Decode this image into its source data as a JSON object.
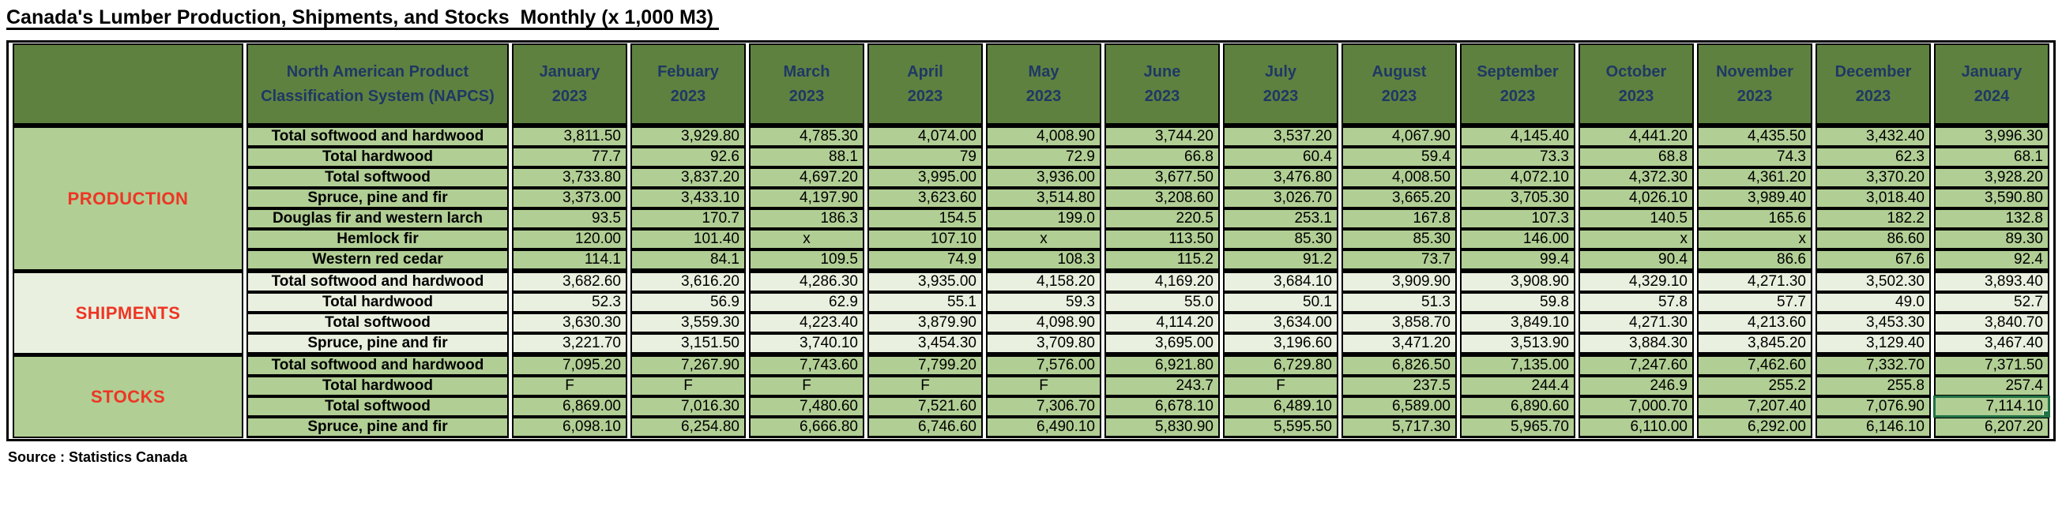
{
  "title": "Canada's Lumber Production, Shipments, and Stocks  Monthly (x 1,000 M3) ",
  "source_note": "Source : Statistics Canada",
  "colors": {
    "header_green": "#5e8140",
    "row_green": "#b1ce94",
    "row_pale_green": "#e9f0df",
    "header_text_navy": "#1f3864",
    "section_label_red": "#ee3524",
    "selection_green": "#217346",
    "border_black": "#000000"
  },
  "table": {
    "napcs_header": "North American Product Classification System (NAPCS)",
    "columns": [
      {
        "month": "January",
        "year": "2023"
      },
      {
        "month": "Febuary",
        "year": "2023"
      },
      {
        "month": "March",
        "year": "2023"
      },
      {
        "month": "April",
        "year": "2023"
      },
      {
        "month": "May",
        "year": "2023"
      },
      {
        "month": "June",
        "year": "2023"
      },
      {
        "month": "July",
        "year": "2023"
      },
      {
        "month": "August",
        "year": "2023"
      },
      {
        "month": "September",
        "year": "2023"
      },
      {
        "month": "October",
        "year": "2023"
      },
      {
        "month": "November",
        "year": "2023"
      },
      {
        "month": "December",
        "year": "2023"
      },
      {
        "month": "January",
        "year": "2024"
      }
    ],
    "sections": [
      {
        "name": "PRODUCTION",
        "tone": "green",
        "rows": [
          {
            "label": "Total softwood and hardwood",
            "values": [
              "3,811.50",
              "3,929.80",
              "4,785.30",
              "4,074.00",
              "4,008.90",
              "3,744.20",
              "3,537.20",
              "4,067.90",
              "4,145.40",
              "4,441.20",
              "4,435.50",
              "3,432.40",
              "3,996.30"
            ]
          },
          {
            "label": "Total hardwood",
            "values": [
              "77.7",
              "92.6",
              "88.1",
              "79",
              "72.9",
              "66.8",
              "60.4",
              "59.4",
              "73.3",
              "68.8",
              "74.3",
              "62.3",
              "68.1"
            ]
          },
          {
            "label": "Total softwood",
            "values": [
              "3,733.80",
              "3,837.20",
              "4,697.20",
              "3,995.00",
              "3,936.00",
              "3,677.50",
              "3,476.80",
              "4,008.50",
              "4,072.10",
              "4,372.30",
              "4,361.20",
              "3,370.20",
              "3,928.20"
            ]
          },
          {
            "label": "Spruce, pine and fir",
            "values": [
              "3,373.00",
              "3,433.10",
              "4,197.90",
              "3,623.60",
              "3,514.80",
              "3,208.60",
              "3,026.70",
              "3,665.20",
              "3,705.30",
              "4,026.10",
              "3,989.40",
              "3,018.40",
              "3,590.80"
            ]
          },
          {
            "label": "Douglas fir and western larch",
            "values": [
              "93.5",
              "170.7",
              "186.3",
              "154.5",
              "199.0",
              "220.5",
              "253.1",
              "167.8",
              "107.3",
              "140.5",
              "165.6",
              "182.2",
              "132.8"
            ]
          },
          {
            "label": "Hemlock fir",
            "values": [
              "120.00",
              "101.40",
              "x",
              "107.10",
              "x",
              "113.50",
              "85.30",
              "85.30",
              "146.00",
              "x",
              "x",
              "86.60",
              "89.30"
            ],
            "right_cols": [
              9,
              10
            ]
          },
          {
            "label": "Western red cedar",
            "values": [
              "114.1",
              "84.1",
              "109.5",
              "74.9",
              "108.3",
              "115.2",
              "91.2",
              "73.7",
              "99.4",
              "90.4",
              "86.6",
              "67.6",
              "92.4"
            ]
          }
        ]
      },
      {
        "name": "SHIPMENTS",
        "tone": "pale",
        "rows": [
          {
            "label": "Total softwood and hardwood",
            "values": [
              "3,682.60",
              "3,616.20",
              "4,286.30",
              "3,935.00",
              "4,158.20",
              "4,169.20",
              "3,684.10",
              "3,909.90",
              "3,908.90",
              "4,329.10",
              "4,271.30",
              "3,502.30",
              "3,893.40"
            ]
          },
          {
            "label": "Total hardwood",
            "values": [
              "52.3",
              "56.9",
              "62.9",
              "55.1",
              "59.3",
              "55.0",
              "50.1",
              "51.3",
              "59.8",
              "57.8",
              "57.7",
              "49.0",
              "52.7"
            ]
          },
          {
            "label": "Total softwood",
            "values": [
              "3,630.30",
              "3,559.30",
              "4,223.40",
              "3,879.90",
              "4,098.90",
              "4,114.20",
              "3,634.00",
              "3,858.70",
              "3,849.10",
              "4,271.30",
              "4,213.60",
              "3,453.30",
              "3,840.70"
            ]
          },
          {
            "label": "Spruce, pine and fir",
            "values": [
              "3,221.70",
              "3,151.50",
              "3,740.10",
              "3,454.30",
              "3,709.80",
              "3,695.00",
              "3,196.60",
              "3,471.20",
              "3,513.90",
              "3,884.30",
              "3,845.20",
              "3,129.40",
              "3,467.40"
            ]
          }
        ]
      },
      {
        "name": "STOCKS",
        "tone": "green",
        "rows": [
          {
            "label": "Total softwood and hardwood",
            "values": [
              "7,095.20",
              "7,267.90",
              "7,743.60",
              "7,799.20",
              "7,576.00",
              "6,921.80",
              "6,729.80",
              "6,826.50",
              "7,135.00",
              "7,247.60",
              "7,462.60",
              "7,332.70",
              "7,371.50"
            ]
          },
          {
            "label": "Total hardwood",
            "values": [
              "F",
              "F",
              "F",
              "F",
              "F",
              "243.7",
              "F",
              "237.5",
              "244.4",
              "246.9",
              "255.2",
              "255.8",
              "257.4"
            ]
          },
          {
            "label": "Total softwood",
            "values": [
              "6,869.00",
              "7,016.30",
              "7,480.60",
              "7,521.60",
              "7,306.70",
              "6,678.10",
              "6,489.10",
              "6,589.00",
              "6,890.60",
              "7,000.70",
              "7,207.40",
              "7,076.90",
              "7,114.10"
            ]
          },
          {
            "label": "Spruce, pine and fir",
            "values": [
              "6,098.10",
              "6,254.80",
              "6,666.80",
              "6,746.60",
              "6,490.10",
              "5,830.90",
              "5,595.50",
              "5,717.30",
              "5,965.70",
              "6,110.00",
              "6,292.00",
              "6,146.10",
              "6,207.20"
            ]
          }
        ]
      }
    ],
    "selected_cell": {
      "section": 2,
      "row": 2,
      "col": 12
    }
  }
}
